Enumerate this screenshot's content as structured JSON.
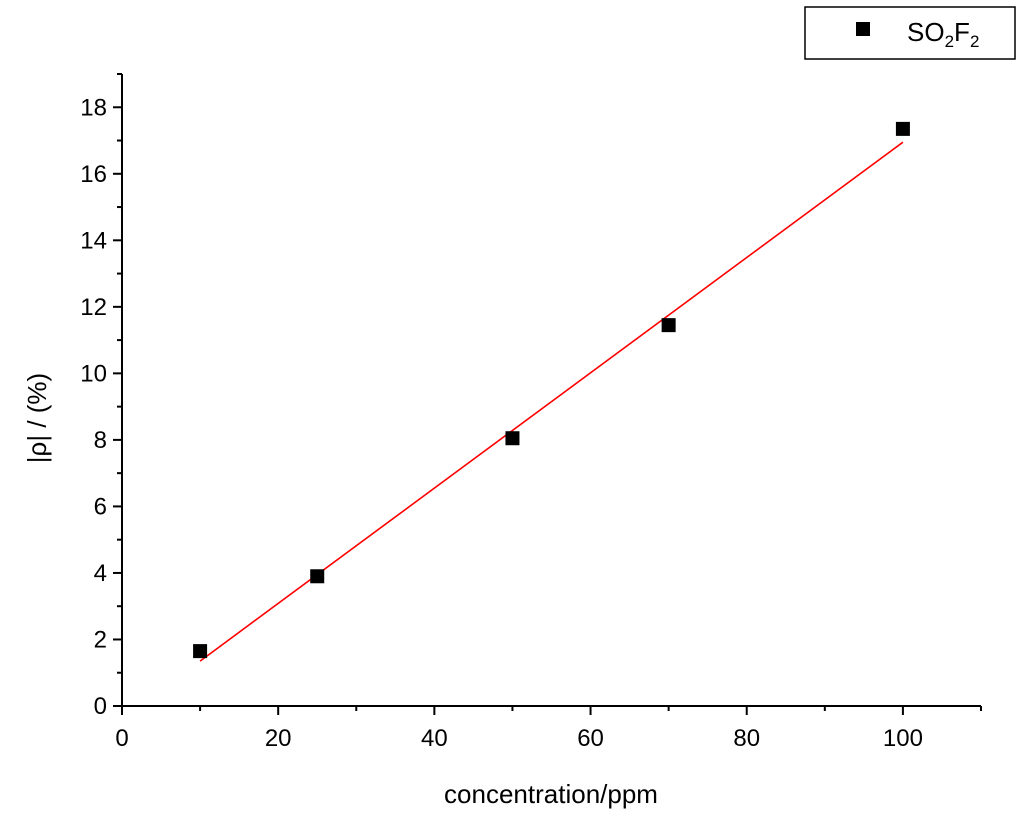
{
  "chart_data": {
    "type": "scatter",
    "title": "",
    "xlabel": "concentration/ppm",
    "ylabel": "|ρ| / (%)",
    "xlim": [
      0,
      110
    ],
    "ylim": [
      0,
      19
    ],
    "x_ticks": [
      0,
      20,
      40,
      60,
      80,
      100
    ],
    "y_ticks": [
      0,
      2,
      4,
      6,
      8,
      10,
      12,
      14,
      16,
      18
    ],
    "grid": false,
    "legend": {
      "position": "top-right",
      "entries": [
        "SO2F2"
      ]
    },
    "series": [
      {
        "name": "SO2F2",
        "marker": "square",
        "color": "#000000",
        "x": [
          10,
          25,
          50,
          70,
          100
        ],
        "y": [
          1.65,
          3.9,
          8.05,
          11.45,
          17.35
        ]
      }
    ],
    "fit_line": {
      "color": "#ff0000",
      "x": [
        10,
        100
      ],
      "y": [
        1.35,
        16.95
      ]
    }
  }
}
